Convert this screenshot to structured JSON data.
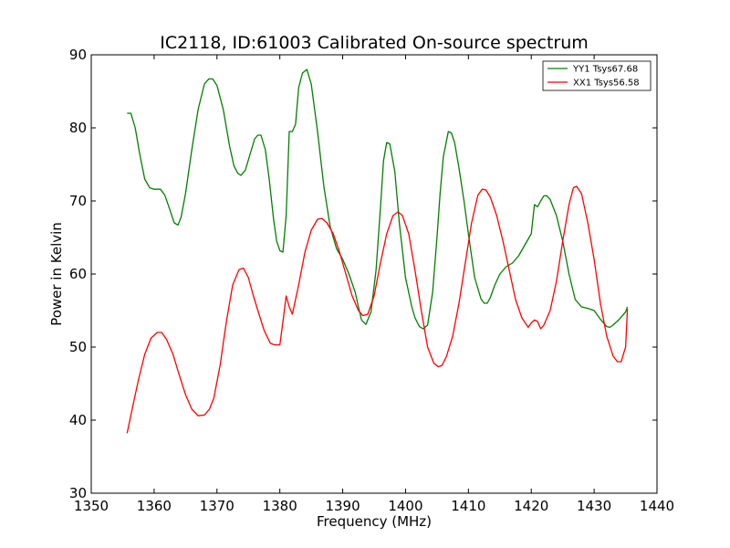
{
  "chart_data": {
    "type": "line",
    "title": "IC2118, ID:61003 Calibrated On-source spectrum",
    "xlabel": "Frequency (MHz)",
    "ylabel": "Power in Kelvin",
    "xlim": [
      1350,
      1440
    ],
    "ylim": [
      30,
      90
    ],
    "xticks": [
      "1350",
      "1360",
      "1370",
      "1380",
      "1390",
      "1400",
      "1410",
      "1420",
      "1430",
      "1440"
    ],
    "yticks": [
      "30",
      "40",
      "50",
      "60",
      "70",
      "80",
      "90"
    ],
    "grid": false,
    "legend_position": "top-right",
    "series": [
      {
        "name": "YY1 Tsys67.68",
        "color": "#008000",
        "x": [
          1355.7,
          1356.3,
          1357.0,
          1357.7,
          1358.5,
          1359.3,
          1360.0,
          1361.0,
          1361.7,
          1362.5,
          1363.2,
          1363.8,
          1364.3,
          1365.0,
          1366.0,
          1367.0,
          1368.0,
          1368.7,
          1369.3,
          1370.0,
          1371.0,
          1372.0,
          1372.7,
          1373.3,
          1373.8,
          1374.5,
          1375.3,
          1376.0,
          1376.5,
          1377.0,
          1377.7,
          1378.3,
          1379.0,
          1379.5,
          1380.0,
          1380.5,
          1381.0,
          1381.5,
          1382.0,
          1382.5,
          1383.0,
          1383.6,
          1384.3,
          1385.0,
          1386.0,
          1387.0,
          1388.0,
          1389.0,
          1390.0,
          1391.0,
          1392.0,
          1392.5,
          1393.0,
          1393.7,
          1394.5,
          1395.3,
          1396.0,
          1396.5,
          1397.0,
          1397.5,
          1398.3,
          1399.0,
          1400.0,
          1401.0,
          1401.5,
          1402.2,
          1402.8,
          1403.5,
          1404.3,
          1405.0,
          1405.5,
          1406.0,
          1406.8,
          1407.3,
          1407.8,
          1408.5,
          1409.3,
          1410.0,
          1411.0,
          1412.0,
          1412.5,
          1413.0,
          1413.5,
          1414.2,
          1415.0,
          1416.0,
          1417.0,
          1418.0,
          1419.0,
          1420.0,
          1420.5,
          1421.0,
          1421.5,
          1422.0,
          1422.5,
          1423.0,
          1424.0,
          1425.0,
          1426.0,
          1427.0,
          1428.0,
          1429.0,
          1430.0,
          1431.0,
          1432.0,
          1432.5,
          1433.0,
          1434.0,
          1435.0,
          1435.3
        ],
        "y": [
          82.0,
          82.0,
          80.0,
          76.5,
          73.0,
          71.8,
          71.6,
          71.6,
          70.8,
          68.8,
          67.0,
          66.7,
          67.8,
          71.0,
          77.0,
          82.5,
          86.0,
          86.7,
          86.7,
          85.8,
          82.5,
          77.5,
          74.8,
          73.8,
          73.5,
          74.2,
          76.5,
          78.5,
          79.0,
          79.0,
          77.0,
          73.0,
          67.5,
          64.5,
          63.2,
          63.0,
          68.0,
          79.5,
          79.5,
          80.5,
          85.5,
          87.5,
          88.0,
          86.0,
          79.5,
          72.0,
          66.5,
          63.5,
          62.0,
          60.0,
          57.5,
          55.5,
          53.7,
          53.1,
          54.8,
          60.5,
          69.0,
          75.5,
          78.0,
          77.8,
          74.0,
          67.0,
          59.5,
          55.5,
          54.0,
          52.8,
          52.5,
          53.0,
          57.5,
          65.0,
          71.0,
          76.0,
          79.5,
          79.3,
          78.0,
          74.5,
          70.0,
          65.5,
          59.5,
          56.6,
          56.0,
          56.0,
          56.8,
          58.5,
          60.0,
          61.0,
          61.5,
          62.5,
          64.0,
          65.5,
          69.5,
          69.2,
          70.0,
          70.7,
          70.7,
          70.2,
          68.0,
          64.5,
          60.0,
          56.5,
          55.5,
          55.3,
          55.0,
          53.8,
          52.8,
          52.7,
          53.0,
          53.8,
          54.8,
          55.5
        ]
      },
      {
        "name": "XX1 Tsys56.58",
        "color": "#ff0000",
        "x": [
          1355.7,
          1356.5,
          1357.5,
          1358.5,
          1359.5,
          1360.5,
          1361.2,
          1362.0,
          1363.0,
          1364.0,
          1365.0,
          1366.0,
          1367.0,
          1368.0,
          1368.8,
          1369.5,
          1370.5,
          1371.5,
          1372.5,
          1373.5,
          1374.2,
          1375.0,
          1375.8,
          1376.5,
          1377.5,
          1378.5,
          1379.2,
          1380.0,
          1380.5,
          1381.0,
          1381.5,
          1382.0,
          1383.0,
          1384.0,
          1385.0,
          1386.0,
          1386.7,
          1387.5,
          1388.5,
          1389.5,
          1390.5,
          1391.5,
          1392.5,
          1393.2,
          1394.0,
          1395.0,
          1396.0,
          1397.0,
          1398.0,
          1398.8,
          1399.5,
          1400.5,
          1401.5,
          1402.5,
          1403.5,
          1404.5,
          1405.2,
          1405.8,
          1406.5,
          1407.5,
          1408.5,
          1409.5,
          1410.5,
          1411.5,
          1412.2,
          1412.8,
          1413.5,
          1414.5,
          1415.5,
          1416.5,
          1417.5,
          1418.5,
          1419.5,
          1420.0,
          1420.5,
          1421.0,
          1421.5,
          1422.0,
          1423.0,
          1424.0,
          1425.0,
          1426.0,
          1426.7,
          1427.2,
          1428.0,
          1429.0,
          1430.0,
          1431.0,
          1432.0,
          1433.0,
          1433.7,
          1434.3,
          1435.0,
          1435.3
        ],
        "y": [
          38.2,
          41.5,
          45.5,
          49.0,
          51.2,
          52.0,
          52.0,
          51.0,
          49.0,
          46.2,
          43.5,
          41.5,
          40.6,
          40.7,
          41.5,
          43.0,
          47.5,
          53.5,
          58.5,
          60.6,
          60.8,
          59.5,
          57.0,
          55.0,
          52.3,
          50.5,
          50.3,
          50.3,
          53.5,
          57.0,
          55.5,
          54.5,
          58.5,
          63.0,
          66.0,
          67.5,
          67.6,
          67.0,
          65.5,
          63.0,
          60.0,
          57.0,
          55.0,
          54.3,
          54.5,
          57.0,
          61.5,
          65.5,
          68.0,
          68.5,
          68.0,
          65.5,
          60.5,
          55.0,
          50.0,
          47.8,
          47.3,
          47.5,
          48.7,
          51.5,
          56.0,
          61.5,
          67.0,
          70.8,
          71.6,
          71.5,
          70.5,
          68.0,
          64.5,
          60.5,
          56.5,
          54.0,
          52.7,
          53.3,
          53.7,
          53.5,
          52.5,
          53.0,
          55.0,
          59.0,
          64.5,
          69.5,
          71.8,
          72.0,
          71.0,
          67.0,
          62.0,
          56.0,
          51.5,
          48.8,
          48.0,
          48.0,
          50.0,
          55.2
        ]
      }
    ]
  }
}
